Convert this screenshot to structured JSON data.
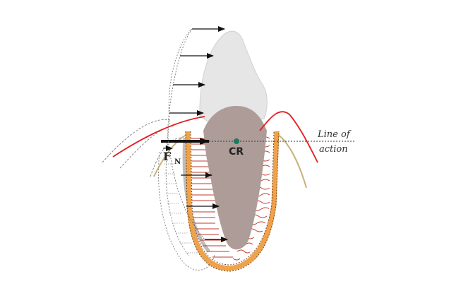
{
  "diagram": {
    "type": "dental-biomechanics",
    "subject": "tooth tipping under a horizontal force"
  },
  "labels": {
    "center_of_resistance": "CR",
    "force": "F",
    "force_subscript": "N",
    "line_of_action_1": "Line of",
    "line_of_action_2": "action"
  },
  "colors": {
    "crown": "#e6e6e6",
    "root": "#ad9c98",
    "pdl_stripes": "#c0392b",
    "gingiva": "#e02020",
    "bone_outline": "#f0a24a",
    "bone_edge": "#6b4a2a",
    "alveolar_crest": "#c8b078",
    "cr_dot": "#1c7a5e",
    "ghost_outline": "#999999",
    "arrow": "#111111"
  },
  "icons": {
    "force_arrow": "arrow-right-icon",
    "distribution_arrows": "arrow-right-icon"
  }
}
